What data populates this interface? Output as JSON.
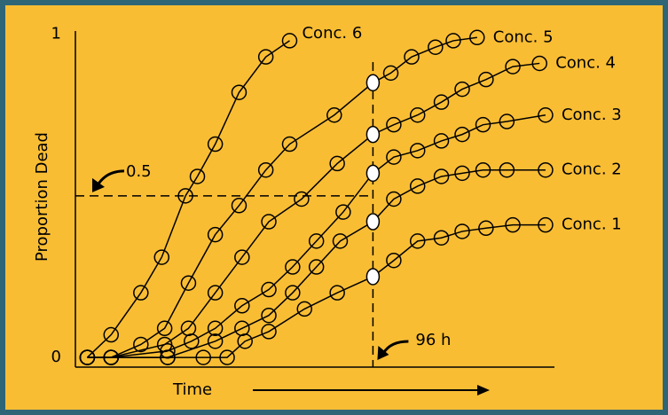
{
  "chart_data": {
    "type": "line",
    "xlabel": "Time",
    "ylabel": "Proportion Dead",
    "xlim": [
      -4,
      157
    ],
    "ylim": [
      -0.03,
      1.01
    ],
    "yticks": [
      0,
      1
    ],
    "annotations": [
      {
        "label": "0.5",
        "y": 0.5
      },
      {
        "label": "96 h",
        "x": 96
      }
    ],
    "series": [
      {
        "name": "Conc. 6",
        "color": "#000000",
        "x": [
          0,
          8,
          18,
          25,
          33,
          37,
          43,
          51,
          60,
          68
        ],
        "values": [
          0,
          0.07,
          0.2,
          0.31,
          0.5,
          0.56,
          0.66,
          0.82,
          0.93,
          0.98
        ]
      },
      {
        "name": "Conc. 5",
        "color": "#000000",
        "x": [
          0,
          8,
          18,
          26,
          34,
          43,
          51,
          60,
          68,
          83,
          96,
          102,
          109,
          117,
          123,
          131
        ],
        "values": [
          0,
          0,
          0.04,
          0.09,
          0.23,
          0.38,
          0.47,
          0.58,
          0.66,
          0.75,
          0.85,
          0.88,
          0.93,
          0.96,
          0.98,
          0.99
        ]
      },
      {
        "name": "Conc. 4",
        "color": "#000000",
        "x": [
          0,
          8,
          26,
          34,
          43,
          52,
          61,
          72,
          84,
          96,
          103,
          111,
          119,
          126,
          134,
          143,
          152
        ],
        "values": [
          0,
          0,
          0.04,
          0.09,
          0.2,
          0.31,
          0.42,
          0.49,
          0.6,
          0.69,
          0.72,
          0.75,
          0.79,
          0.83,
          0.86,
          0.9,
          0.91
        ]
      },
      {
        "name": "Conc. 3",
        "color": "#000000",
        "x": [
          0,
          8,
          27,
          35,
          43,
          52,
          61,
          69,
          77,
          86,
          96,
          103,
          111,
          119,
          126,
          133,
          141,
          154
        ],
        "values": [
          0,
          0,
          0.02,
          0.05,
          0.09,
          0.16,
          0.21,
          0.28,
          0.36,
          0.45,
          0.57,
          0.62,
          0.64,
          0.67,
          0.69,
          0.72,
          0.73,
          0.75
        ]
      },
      {
        "name": "Conc. 2",
        "color": "#000000",
        "x": [
          0,
          8,
          27,
          43,
          52,
          61,
          69,
          77,
          85,
          96,
          103,
          111,
          119,
          126,
          133,
          141,
          154
        ],
        "values": [
          0,
          0,
          0,
          0.05,
          0.09,
          0.13,
          0.2,
          0.28,
          0.36,
          0.42,
          0.49,
          0.53,
          0.56,
          0.57,
          0.58,
          0.58,
          0.58
        ]
      },
      {
        "name": "Conc. 1",
        "color": "#000000",
        "x": [
          0,
          8,
          27,
          39,
          47,
          53,
          61,
          73,
          84,
          96,
          103,
          111,
          119,
          126,
          134,
          143,
          154
        ],
        "values": [
          0,
          0,
          0,
          0,
          0,
          0.05,
          0.08,
          0.15,
          0.2,
          0.25,
          0.3,
          0.36,
          0.37,
          0.39,
          0.4,
          0.41,
          0.41
        ]
      }
    ]
  }
}
